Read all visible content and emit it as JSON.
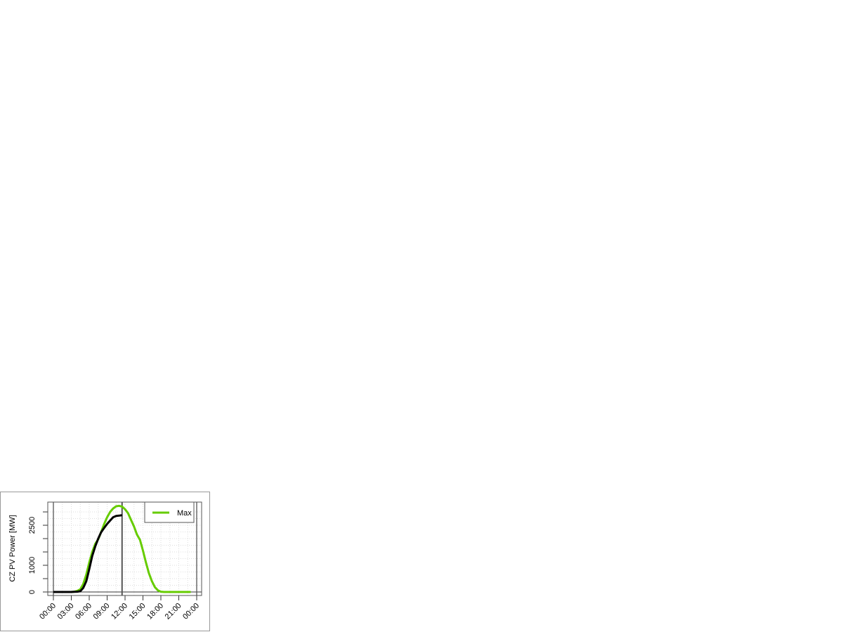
{
  "chart_data": {
    "type": "line",
    "title": "",
    "xlabel": "",
    "ylabel": "CZ PV Power [MW]",
    "xlim": [
      "00:00",
      "24:00"
    ],
    "ylim": [
      0,
      3300
    ],
    "x_ticks": [
      "00:00",
      "03:00",
      "06:00",
      "09:00",
      "12:00",
      "15:00",
      "18:00",
      "21:00",
      "00:00"
    ],
    "y_ticks": [
      0,
      500,
      1000,
      1500,
      2000,
      2500,
      3000
    ],
    "y_tick_labels": [
      "0",
      "1000",
      "2500"
    ],
    "grid": true,
    "legend_position": "top-right",
    "vertical_markers_hours": [
      0,
      11.5,
      24
    ],
    "series": [
      {
        "name": "Max",
        "color": "#66cc00",
        "x_hours": [
          0,
          3,
          3.5,
          4,
          4.5,
          5,
          5.5,
          6,
          6.5,
          7,
          7.5,
          8,
          8.5,
          9,
          9.5,
          10,
          10.5,
          11,
          11.5,
          12,
          12.5,
          13,
          13.5,
          14,
          14.5,
          15,
          15.5,
          16,
          16.5,
          17,
          17.5,
          18,
          18.5,
          19,
          20,
          21,
          22,
          23
        ],
        "values": [
          0,
          0,
          10,
          40,
          100,
          300,
          650,
          1100,
          1500,
          1800,
          1970,
          2250,
          2550,
          2800,
          3000,
          3130,
          3210,
          3230,
          3200,
          3100,
          2950,
          2700,
          2450,
          2150,
          1950,
          1550,
          1100,
          700,
          400,
          180,
          60,
          10,
          0,
          0,
          0,
          0,
          0,
          0
        ]
      },
      {
        "name": "",
        "color": "#000000",
        "x_hours": [
          0,
          3,
          3.5,
          4,
          4.5,
          5,
          5.5,
          6,
          6.5,
          7,
          7.5,
          8,
          8.5,
          9,
          9.5,
          10,
          10.5,
          11,
          11.5
        ],
        "values": [
          0,
          0,
          5,
          10,
          30,
          150,
          400,
          850,
          1350,
          1700,
          2000,
          2240,
          2400,
          2550,
          2680,
          2800,
          2850,
          2860,
          2880
        ]
      }
    ]
  }
}
